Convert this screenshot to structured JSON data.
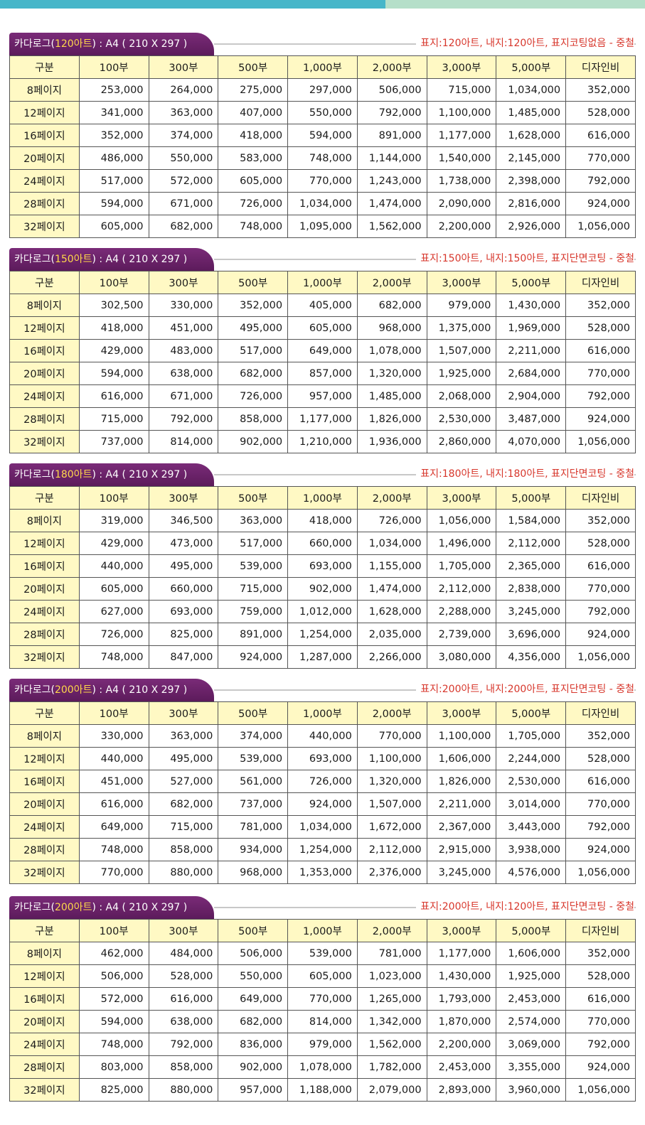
{
  "columns": [
    "구분",
    "100부",
    "300부",
    "500부",
    "1,000부",
    "2,000부",
    "3,000부",
    "5,000부",
    "디자인비"
  ],
  "sections": [
    {
      "label_pre": "카다로그(",
      "paper": "120아트",
      "label_post": ") : A4 ( 210 X 297 )",
      "spec": "표지:120아트, 내지:120아트, 표지코팅없음 - 중철",
      "rows": [
        {
          "label": "8페이지",
          "values": [
            "253,000",
            "264,000",
            "275,000",
            "297,000",
            "506,000",
            "715,000",
            "1,034,000",
            "352,000"
          ]
        },
        {
          "label": "12페이지",
          "values": [
            "341,000",
            "363,000",
            "407,000",
            "550,000",
            "792,000",
            "1,100,000",
            "1,485,000",
            "528,000"
          ]
        },
        {
          "label": "16페이지",
          "values": [
            "352,000",
            "374,000",
            "418,000",
            "594,000",
            "891,000",
            "1,177,000",
            "1,628,000",
            "616,000"
          ]
        },
        {
          "label": "20페이지",
          "values": [
            "486,000",
            "550,000",
            "583,000",
            "748,000",
            "1,144,000",
            "1,540,000",
            "2,145,000",
            "770,000"
          ]
        },
        {
          "label": "24페이지",
          "values": [
            "517,000",
            "572,000",
            "605,000",
            "770,000",
            "1,243,000",
            "1,738,000",
            "2,398,000",
            "792,000"
          ]
        },
        {
          "label": "28페이지",
          "values": [
            "594,000",
            "671,000",
            "726,000",
            "1,034,000",
            "1,474,000",
            "2,090,000",
            "2,816,000",
            "924,000"
          ]
        },
        {
          "label": "32페이지",
          "values": [
            "605,000",
            "682,000",
            "748,000",
            "1,095,000",
            "1,562,000",
            "2,200,000",
            "2,926,000",
            "1,056,000"
          ]
        }
      ]
    },
    {
      "label_pre": "카다로그(",
      "paper": "150아트",
      "label_post": ") : A4 ( 210 X 297 )",
      "spec": "표지:150아트, 내지:150아트, 표지단면코팅 - 중철",
      "rows": [
        {
          "label": "8페이지",
          "values": [
            "302,500",
            "330,000",
            "352,000",
            "405,000",
            "682,000",
            "979,000",
            "1,430,000",
            "352,000"
          ]
        },
        {
          "label": "12페이지",
          "values": [
            "418,000",
            "451,000",
            "495,000",
            "605,000",
            "968,000",
            "1,375,000",
            "1,969,000",
            "528,000"
          ]
        },
        {
          "label": "16페이지",
          "values": [
            "429,000",
            "483,000",
            "517,000",
            "649,000",
            "1,078,000",
            "1,507,000",
            "2,211,000",
            "616,000"
          ]
        },
        {
          "label": "20페이지",
          "values": [
            "594,000",
            "638,000",
            "682,000",
            "857,000",
            "1,320,000",
            "1,925,000",
            "2,684,000",
            "770,000"
          ]
        },
        {
          "label": "24페이지",
          "values": [
            "616,000",
            "671,000",
            "726,000",
            "957,000",
            "1,485,000",
            "2,068,000",
            "2,904,000",
            "792,000"
          ]
        },
        {
          "label": "28페이지",
          "values": [
            "715,000",
            "792,000",
            "858,000",
            "1,177,000",
            "1,826,000",
            "2,530,000",
            "3,487,000",
            "924,000"
          ]
        },
        {
          "label": "32페이지",
          "values": [
            "737,000",
            "814,000",
            "902,000",
            "1,210,000",
            "1,936,000",
            "2,860,000",
            "4,070,000",
            "1,056,000"
          ]
        }
      ]
    },
    {
      "label_pre": "카다로그(",
      "paper": "180아트",
      "label_post": ") : A4 ( 210 X 297 )",
      "spec": "표지:180아트, 내지:180아트, 표지단면코팅 - 중철",
      "rows": [
        {
          "label": "8페이지",
          "values": [
            "319,000",
            "346,500",
            "363,000",
            "418,000",
            "726,000",
            "1,056,000",
            "1,584,000",
            "352,000"
          ]
        },
        {
          "label": "12페이지",
          "values": [
            "429,000",
            "473,000",
            "517,000",
            "660,000",
            "1,034,000",
            "1,496,000",
            "2,112,000",
            "528,000"
          ]
        },
        {
          "label": "16페이지",
          "values": [
            "440,000",
            "495,000",
            "539,000",
            "693,000",
            "1,155,000",
            "1,705,000",
            "2,365,000",
            "616,000"
          ]
        },
        {
          "label": "20페이지",
          "values": [
            "605,000",
            "660,000",
            "715,000",
            "902,000",
            "1,474,000",
            "2,112,000",
            "2,838,000",
            "770,000"
          ]
        },
        {
          "label": "24페이지",
          "values": [
            "627,000",
            "693,000",
            "759,000",
            "1,012,000",
            "1,628,000",
            "2,288,000",
            "3,245,000",
            "792,000"
          ]
        },
        {
          "label": "28페이지",
          "values": [
            "726,000",
            "825,000",
            "891,000",
            "1,254,000",
            "2,035,000",
            "2,739,000",
            "3,696,000",
            "924,000"
          ]
        },
        {
          "label": "32페이지",
          "values": [
            "748,000",
            "847,000",
            "924,000",
            "1,287,000",
            "2,266,000",
            "3,080,000",
            "4,356,000",
            "1,056,000"
          ]
        }
      ]
    },
    {
      "label_pre": "카다로그(",
      "paper": "200아트",
      "label_post": ") : A4 ( 210 X 297 )",
      "spec": "표지:200아트, 내지:200아트, 표지단면코팅 - 중철",
      "rows": [
        {
          "label": "8페이지",
          "values": [
            "330,000",
            "363,000",
            "374,000",
            "440,000",
            "770,000",
            "1,100,000",
            "1,705,000",
            "352,000"
          ]
        },
        {
          "label": "12페이지",
          "values": [
            "440,000",
            "495,000",
            "539,000",
            "693,000",
            "1,100,000",
            "1,606,000",
            "2,244,000",
            "528,000"
          ]
        },
        {
          "label": "16페이지",
          "values": [
            "451,000",
            "527,000",
            "561,000",
            "726,000",
            "1,320,000",
            "1,826,000",
            "2,530,000",
            "616,000"
          ]
        },
        {
          "label": "20페이지",
          "values": [
            "616,000",
            "682,000",
            "737,000",
            "924,000",
            "1,507,000",
            "2,211,000",
            "3,014,000",
            "770,000"
          ]
        },
        {
          "label": "24페이지",
          "values": [
            "649,000",
            "715,000",
            "781,000",
            "1,034,000",
            "1,672,000",
            "2,367,000",
            "3,443,000",
            "792,000"
          ]
        },
        {
          "label": "28페이지",
          "values": [
            "748,000",
            "858,000",
            "934,000",
            "1,254,000",
            "2,112,000",
            "2,915,000",
            "3,938,000",
            "924,000"
          ]
        },
        {
          "label": "32페이지",
          "values": [
            "770,000",
            "880,000",
            "968,000",
            "1,353,000",
            "2,376,000",
            "3,245,000",
            "4,576,000",
            "1,056,000"
          ]
        }
      ]
    },
    {
      "label_pre": "카다로그(",
      "paper": "200아트",
      "label_post": ") : A4 ( 210 X 297 )",
      "spec": "표지:200아트, 내지:120아트, 표지단면코팅 - 중철",
      "rows": [
        {
          "label": "8페이지",
          "values": [
            "462,000",
            "484,000",
            "506,000",
            "539,000",
            "781,000",
            "1,177,000",
            "1,606,000",
            "352,000"
          ]
        },
        {
          "label": "12페이지",
          "values": [
            "506,000",
            "528,000",
            "550,000",
            "605,000",
            "1,023,000",
            "1,430,000",
            "1,925,000",
            "528,000"
          ]
        },
        {
          "label": "16페이지",
          "values": [
            "572,000",
            "616,000",
            "649,000",
            "770,000",
            "1,265,000",
            "1,793,000",
            "2,453,000",
            "616,000"
          ]
        },
        {
          "label": "20페이지",
          "values": [
            "594,000",
            "638,000",
            "682,000",
            "814,000",
            "1,342,000",
            "1,870,000",
            "2,574,000",
            "770,000"
          ]
        },
        {
          "label": "24페이지",
          "values": [
            "748,000",
            "792,000",
            "836,000",
            "979,000",
            "1,562,000",
            "2,200,000",
            "3,069,000",
            "792,000"
          ]
        },
        {
          "label": "28페이지",
          "values": [
            "803,000",
            "858,000",
            "902,000",
            "1,078,000",
            "1,782,000",
            "2,453,000",
            "3,355,000",
            "924,000"
          ]
        },
        {
          "label": "32페이지",
          "values": [
            "825,000",
            "880,000",
            "957,000",
            "1,188,000",
            "2,079,000",
            "2,893,000",
            "3,960,000",
            "1,056,000"
          ]
        }
      ]
    }
  ]
}
